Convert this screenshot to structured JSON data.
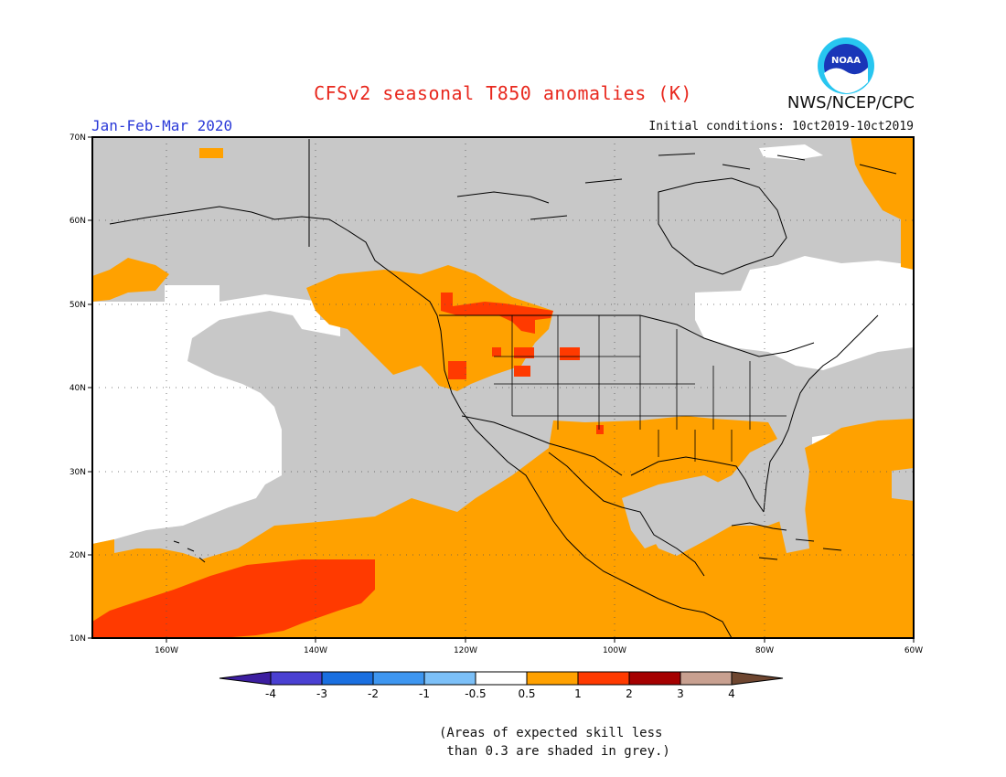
{
  "header": {
    "title": "CFSv2 seasonal T850 anomalies (K)",
    "season": "Jan-Feb-Mar 2020",
    "initial_conditions": "Initial conditions: 10ct2019-10ct2019",
    "agency": "NWS/NCEP/CPC",
    "logo_text": "NOAA"
  },
  "map": {
    "lat_labels": [
      "70N",
      "60N",
      "50N",
      "40N",
      "30N",
      "20N",
      "10N"
    ],
    "lon_labels": [
      "160W",
      "140W",
      "120W",
      "100W",
      "80W",
      "60W"
    ],
    "colors": {
      "grey": "#c8c8c8",
      "white": "#ffffff",
      "orange": "#ffa100",
      "red": "#ff3a00",
      "coast": "#000000",
      "grid": "#555555"
    },
    "regions": [
      {
        "name": "skill-less-grey",
        "fill": "grey"
      },
      {
        "name": "neutral-white",
        "fill": "white"
      },
      {
        "name": "warm-orange",
        "fill": "orange"
      },
      {
        "name": "warm-red",
        "fill": "red"
      }
    ]
  },
  "colorbar": {
    "labels": [
      "-4",
      "-3",
      "-2",
      "-1",
      "-0.5",
      "0.5",
      "1",
      "2",
      "3",
      "4"
    ],
    "colors": [
      "#3c1ea0",
      "#4a40d2",
      "#1a6fe0",
      "#3e96f0",
      "#7cc0f8",
      "#ffffff",
      "#ffa100",
      "#ff3a00",
      "#a50000",
      "#c8a090",
      "#6e4630"
    ]
  },
  "footnote": {
    "line1": "(Areas of expected skill less",
    "line2": " than 0.3 are shaded in grey.)"
  }
}
